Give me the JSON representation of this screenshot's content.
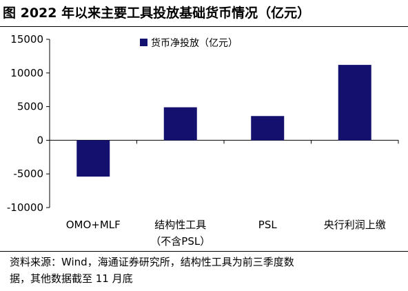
{
  "figure": {
    "title": "图  2022 年以来主要工具投放基础货币情况（亿元）",
    "source_line1": "资料来源：Wind，海通证券研究所，结构性工具为前三季度数",
    "source_line2": "据，其他数据截至 11 月底"
  },
  "chart_data": {
    "type": "bar",
    "categories": [
      [
        "OMO+MLF"
      ],
      [
        "结构性工具",
        "（不含PSL）"
      ],
      [
        "PSL"
      ],
      [
        "央行利润上缴"
      ]
    ],
    "series": [
      {
        "name": "货币净投放（亿元）",
        "values": [
          -5400,
          4900,
          3600,
          11200
        ],
        "color": "#14106e"
      }
    ],
    "ylim": [
      -10000,
      15000
    ],
    "yticks": [
      15000,
      10000,
      5000,
      0,
      -5000,
      -10000
    ],
    "ytick_labels": [
      "15000",
      "10000",
      "5000",
      "0",
      "-5000",
      "-10000"
    ],
    "grid": false,
    "legend_position": "top-left"
  }
}
